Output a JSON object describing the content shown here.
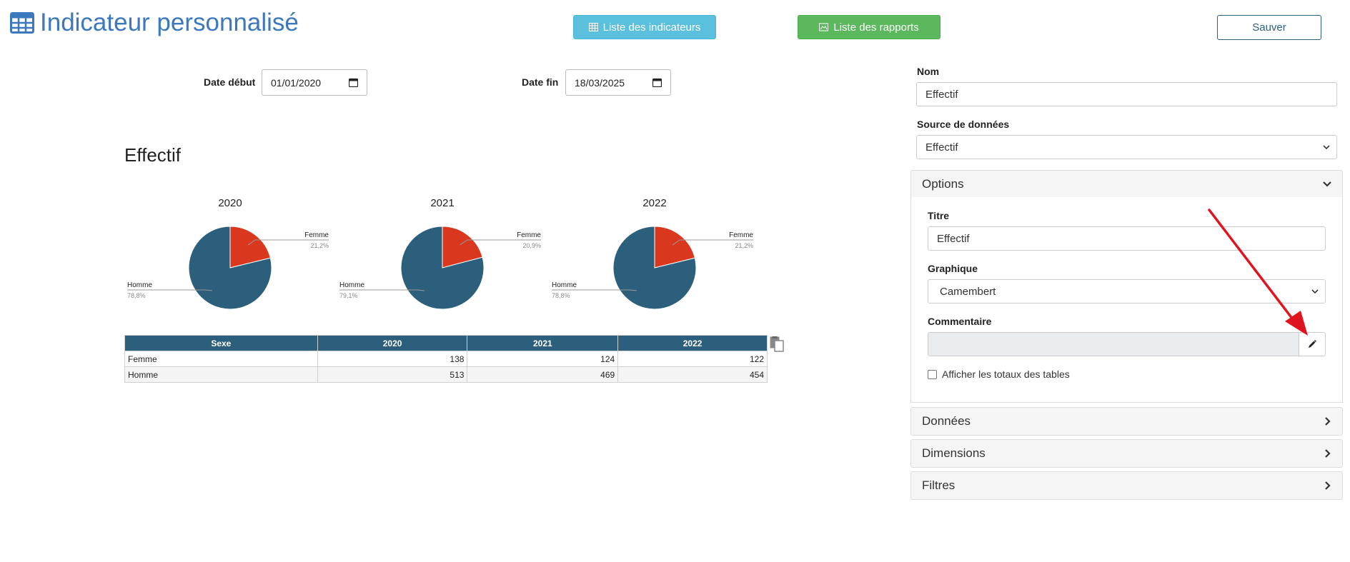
{
  "header": {
    "title": "Indicateur personnalisé",
    "btn_indicateurs": "Liste des indicateurs",
    "btn_rapports": "Liste des rapports",
    "btn_save": "Sauver"
  },
  "filters": {
    "date_debut_label": "Date début",
    "date_debut_value": "01/01/2020",
    "date_fin_label": "Date fin",
    "date_fin_value": "18/03/2025"
  },
  "chart_data": {
    "type": "pie",
    "title": "Effectif",
    "colors": {
      "Femme": "#d9381e",
      "Homme": "#2c5f7c"
    },
    "pies": [
      {
        "year": "2020",
        "slices": [
          {
            "label": "Femme",
            "pct": "21,2%",
            "value": 21.2
          },
          {
            "label": "Homme",
            "pct": "78,8%",
            "value": 78.8
          }
        ]
      },
      {
        "year": "2021",
        "slices": [
          {
            "label": "Femme",
            "pct": "20,9%",
            "value": 20.9
          },
          {
            "label": "Homme",
            "pct": "79,1%",
            "value": 79.1
          }
        ]
      },
      {
        "year": "2022",
        "slices": [
          {
            "label": "Femme",
            "pct": "21,2%",
            "value": 21.2
          },
          {
            "label": "Homme",
            "pct": "78,8%",
            "value": 78.8
          }
        ]
      }
    ]
  },
  "table": {
    "headers": [
      "Sexe",
      "2020",
      "2021",
      "2022"
    ],
    "rows": [
      {
        "label": "Femme",
        "values": [
          "138",
          "124",
          "122"
        ]
      },
      {
        "label": "Homme",
        "values": [
          "513",
          "469",
          "454"
        ]
      }
    ]
  },
  "panel": {
    "nom_label": "Nom",
    "nom_value": "Effectif",
    "source_label": "Source de données",
    "source_value": "Effectif",
    "options_label": "Options",
    "titre_label": "Titre",
    "titre_value": "Effectif",
    "graphique_label": "Graphique",
    "graphique_value": "Camembert",
    "commentaire_label": "Commentaire",
    "totaux_label": "Afficher les totaux des tables",
    "donnees_label": "Données",
    "dimensions_label": "Dimensions",
    "filtres_label": "Filtres"
  },
  "accent_colors": {
    "title_blue": "#3c78be",
    "annotation_arrow": "#e0141e"
  }
}
